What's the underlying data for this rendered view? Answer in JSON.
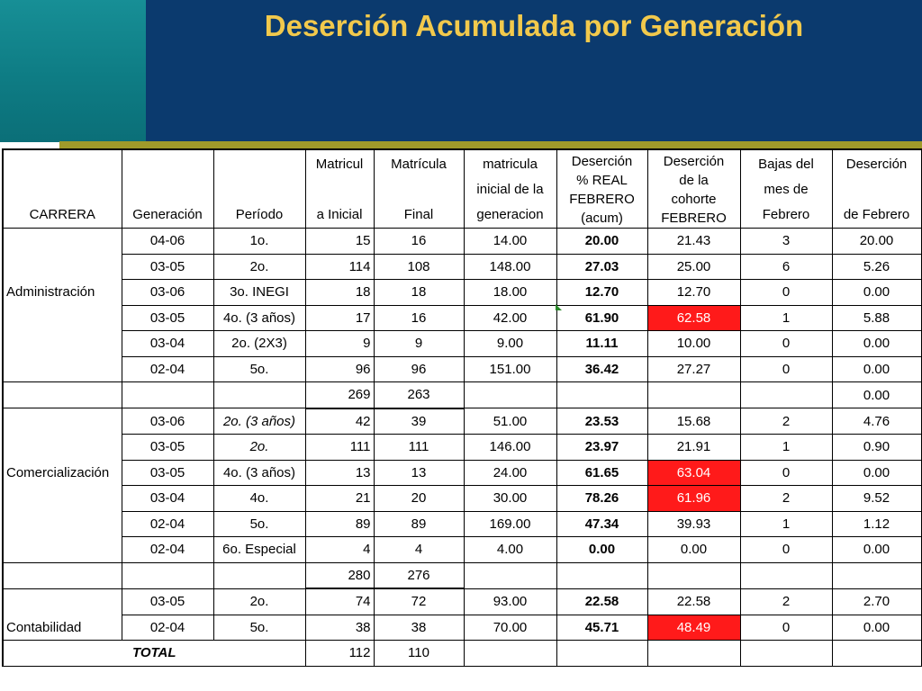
{
  "slide": {
    "title": "Deserción Acumulada por Generación",
    "colors": {
      "header_bg": "#0b3a6e",
      "teal": "#12858d",
      "olive": "#a09a2a",
      "title": "#f2c94c",
      "highlight": "#ff1a1a"
    }
  },
  "table": {
    "headers": {
      "carrera": [
        "CARRERA"
      ],
      "generacion": [
        "Generación"
      ],
      "periodo": [
        "Período"
      ],
      "mat_inicial": [
        "Matricul",
        "",
        "a Inicial"
      ],
      "mat_final": [
        "Matrícula",
        "",
        "Final"
      ],
      "mat_gen": [
        "matricula",
        "inicial de la",
        "generacion"
      ],
      "des_real": [
        "Deserción",
        "% REAL",
        "FEBRERO",
        "(acum)"
      ],
      "des_cohorte": [
        "Deserción",
        "de la",
        "cohorte",
        "FEBRERO"
      ],
      "bajas": [
        "Bajas del",
        "mes de",
        "Febrero"
      ],
      "des_feb": [
        "Deserción",
        "",
        "de Febrero"
      ]
    },
    "rows": [
      {
        "carrera": "",
        "gen": "04-06",
        "periodo": "1o.",
        "ini": "15",
        "fin": "16",
        "mig": "14.00",
        "real": "20.00",
        "coh": "21.43",
        "bajas": "3",
        "feb": "20.00"
      },
      {
        "carrera": "",
        "gen": "03-05",
        "periodo": "2o.",
        "ini": "114",
        "fin": "108",
        "mig": "148.00",
        "real": "27.03",
        "coh": "25.00",
        "bajas": "6",
        "feb": "5.26"
      },
      {
        "carrera": "Administración",
        "gen": "03-06",
        "periodo": "3o. INEGI",
        "ini": "18",
        "fin": "18",
        "mig": "18.00",
        "real": "12.70",
        "coh": "12.70",
        "bajas": "0",
        "feb": "0.00"
      },
      {
        "carrera": "",
        "gen": "03-05",
        "periodo": "4o. (3 años)",
        "ini": "17",
        "fin": "16",
        "mig": "42.00",
        "real": "61.90",
        "coh": "62.58",
        "bajas": "1",
        "feb": "5.88"
      },
      {
        "carrera": "",
        "gen": "03-04",
        "periodo": "2o. (2X3)",
        "ini": "9",
        "fin": "9",
        "mig": "9.00",
        "real": "11.11",
        "coh": "10.00",
        "bajas": "0",
        "feb": "0.00"
      },
      {
        "carrera": "",
        "gen": "02-04",
        "periodo": "5o.",
        "ini": "96",
        "fin": "96",
        "mig": "151.00",
        "real": "36.42",
        "coh": "27.27",
        "bajas": "0",
        "feb": "0.00"
      },
      {
        "carrera": "",
        "gen": "",
        "periodo": "",
        "ini": "269",
        "fin": "263",
        "mig": "",
        "real": "",
        "coh": "",
        "bajas": "",
        "feb": "0.00"
      },
      {
        "carrera": "",
        "gen": "03-06",
        "periodo": "2o. (3 años)",
        "ini": "42",
        "fin": "39",
        "mig": "51.00",
        "real": "23.53",
        "coh": "15.68",
        "bajas": "2",
        "feb": "4.76"
      },
      {
        "carrera": "",
        "gen": "03-05",
        "periodo": "2o.",
        "ini": "111",
        "fin": "111",
        "mig": "146.00",
        "real": "23.97",
        "coh": "21.91",
        "bajas": "1",
        "feb": "0.90"
      },
      {
        "carrera": "Comercialización",
        "gen": "03-05",
        "periodo": "4o. (3 años)",
        "ini": "13",
        "fin": "13",
        "mig": "24.00",
        "real": "61.65",
        "coh": "63.04",
        "bajas": "0",
        "feb": "0.00"
      },
      {
        "carrera": "",
        "gen": "03-04",
        "periodo": "4o.",
        "ini": "21",
        "fin": "20",
        "mig": "30.00",
        "real": "78.26",
        "coh": "61.96",
        "bajas": "2",
        "feb": "9.52"
      },
      {
        "carrera": "",
        "gen": "02-04",
        "periodo": "5o.",
        "ini": "89",
        "fin": "89",
        "mig": "169.00",
        "real": "47.34",
        "coh": "39.93",
        "bajas": "1",
        "feb": "1.12"
      },
      {
        "carrera": "",
        "gen": "02-04",
        "periodo": "6o. Especial",
        "ini": "4",
        "fin": "4",
        "mig": "4.00",
        "real": "0.00",
        "coh": "0.00",
        "bajas": "0",
        "feb": "0.00"
      },
      {
        "carrera": "",
        "gen": "",
        "periodo": "",
        "ini": "280",
        "fin": "276",
        "mig": "",
        "real": "",
        "coh": "",
        "bajas": "",
        "feb": ""
      },
      {
        "carrera": "",
        "gen": "03-05",
        "periodo": "2o.",
        "ini": "74",
        "fin": "72",
        "mig": "93.00",
        "real": "22.58",
        "coh": "22.58",
        "bajas": "2",
        "feb": "2.70"
      },
      {
        "carrera": "Contabilidad",
        "gen": "02-04",
        "periodo": "5o.",
        "ini": "38",
        "fin": "38",
        "mig": "70.00",
        "real": "45.71",
        "coh": "48.49",
        "bajas": "0",
        "feb": "0.00"
      }
    ],
    "total": {
      "label": "TOTAL",
      "ini": "112",
      "fin": "110"
    }
  }
}
